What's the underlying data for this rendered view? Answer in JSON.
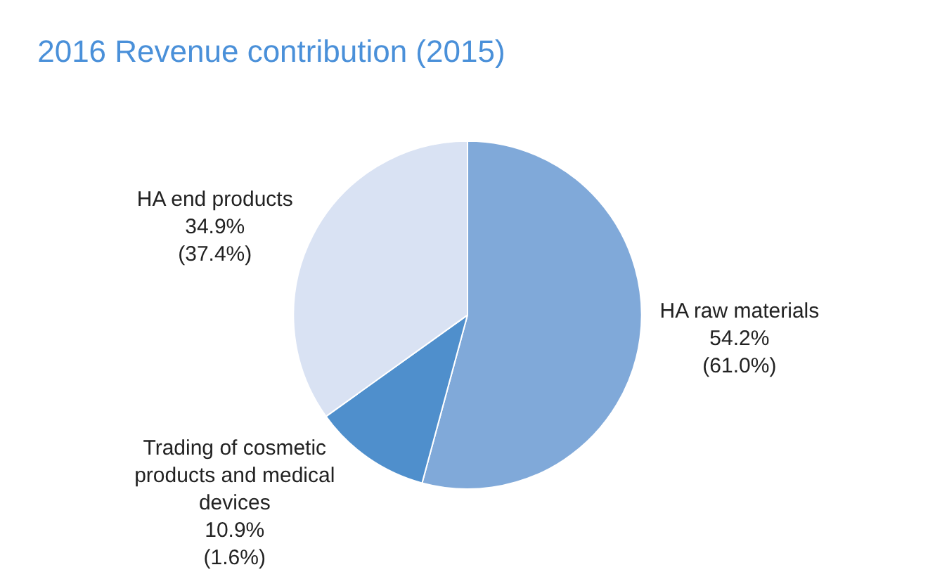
{
  "chart_data": {
    "type": "pie",
    "title": "2016 Revenue contribution (2015)",
    "categories": [
      "HA raw materials",
      "Trading of cosmetic products and medical devices",
      "HA end products"
    ],
    "values": [
      54.2,
      10.9,
      34.9
    ],
    "value_labels": [
      "54.2% (61.0%)",
      "10.9% (1.6%)",
      "34.9% (37.4%)"
    ],
    "colors": [
      "#80a9d9",
      "#4f8fcc",
      "#d9e2f3"
    ],
    "legend": false
  }
}
